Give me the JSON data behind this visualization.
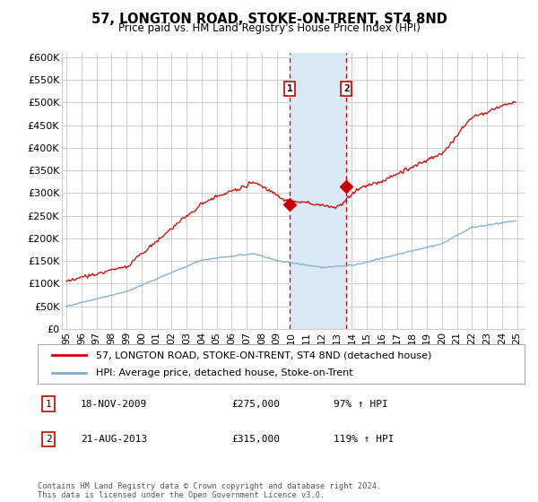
{
  "title": "57, LONGTON ROAD, STOKE-ON-TRENT, ST4 8ND",
  "subtitle": "Price paid vs. HM Land Registry's House Price Index (HPI)",
  "ylabel_ticks": [
    "£0",
    "£50K",
    "£100K",
    "£150K",
    "£200K",
    "£250K",
    "£300K",
    "£350K",
    "£400K",
    "£450K",
    "£500K",
    "£550K",
    "£600K"
  ],
  "ytick_values": [
    0,
    50000,
    100000,
    150000,
    200000,
    250000,
    300000,
    350000,
    400000,
    450000,
    500000,
    550000,
    600000
  ],
  "ylim": [
    0,
    610000
  ],
  "xlim_start": 1994.7,
  "xlim_end": 2025.5,
  "xtick_years": [
    1995,
    1996,
    1997,
    1998,
    1999,
    2000,
    2001,
    2002,
    2003,
    2004,
    2005,
    2006,
    2007,
    2008,
    2009,
    2010,
    2011,
    2012,
    2013,
    2014,
    2015,
    2016,
    2017,
    2018,
    2019,
    2020,
    2021,
    2022,
    2023,
    2024,
    2025
  ],
  "xtick_labels": [
    "95",
    "96",
    "97",
    "98",
    "99",
    "00",
    "01",
    "02",
    "03",
    "04",
    "05",
    "06",
    "07",
    "08",
    "09",
    "10",
    "11",
    "12",
    "13",
    "14",
    "15",
    "16",
    "17",
    "18",
    "19",
    "20",
    "21",
    "22",
    "23",
    "24",
    "25"
  ],
  "red_line_color": "#cc0000",
  "blue_line_color": "#7aadcc",
  "sale1_date_x": 2009.88,
  "sale1_price": 275000,
  "sale1_label": "1",
  "sale1_date_str": "18-NOV-2009",
  "sale1_price_str": "£275,000",
  "sale1_hpi_str": "97% ↑ HPI",
  "sale2_date_x": 2013.64,
  "sale2_price": 315000,
  "sale2_label": "2",
  "sale2_date_str": "21-AUG-2013",
  "sale2_price_str": "£315,000",
  "sale2_hpi_str": "119% ↑ HPI",
  "shaded_region_color": "#d8e8f4",
  "vline_color": "#cc0000",
  "legend1_label": "57, LONGTON ROAD, STOKE-ON-TRENT, ST4 8ND (detached house)",
  "legend2_label": "HPI: Average price, detached house, Stoke-on-Trent",
  "footnote": "Contains HM Land Registry data © Crown copyright and database right 2024.\nThis data is licensed under the Open Government Licence v3.0.",
  "background_color": "#ffffff",
  "grid_color": "#cccccc"
}
